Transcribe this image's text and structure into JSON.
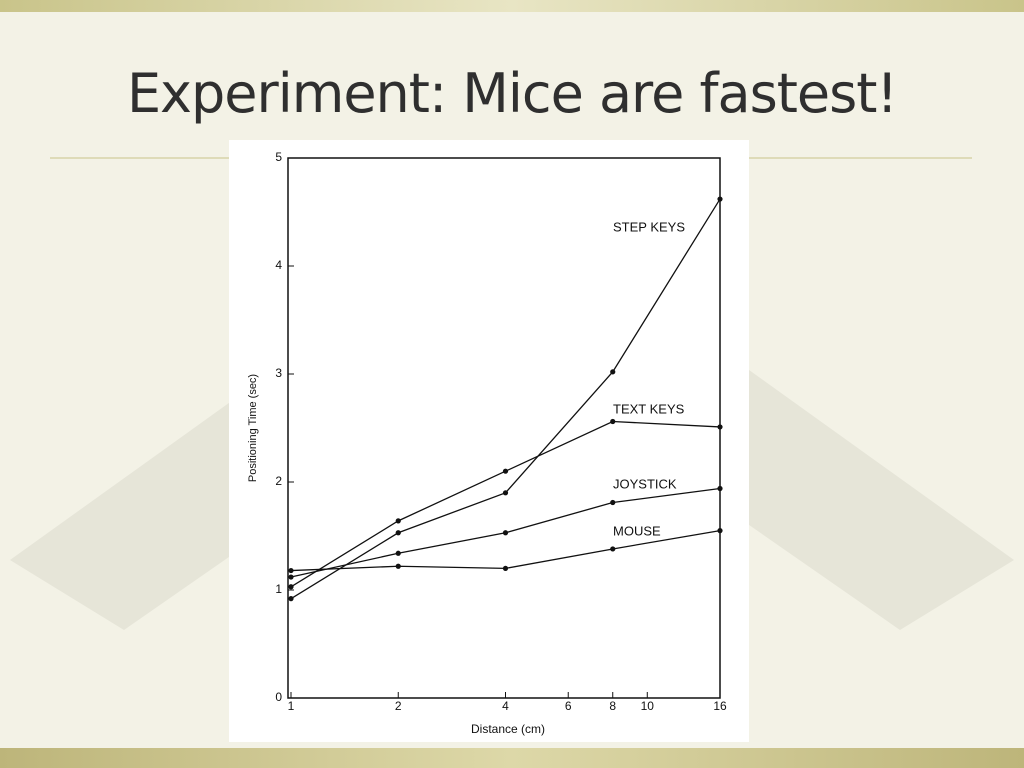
{
  "title": "Experiment: Mice are fastest!",
  "chart_data": {
    "type": "line",
    "x_label": "Distance (cm)",
    "y_label": "Positioning Time (sec)",
    "x": [
      1,
      2,
      4,
      8,
      16
    ],
    "xscale": "log",
    "xlim": [
      1,
      16
    ],
    "xticks": [
      1,
      2,
      4,
      6,
      8,
      10,
      16
    ],
    "ylim": [
      0,
      5
    ],
    "yticks": [
      0,
      1,
      2,
      3,
      4,
      5
    ],
    "grid": false,
    "series": [
      {
        "name": "STEP KEYS",
        "color": "#111111",
        "values": [
          0.92,
          1.53,
          1.9,
          3.02,
          4.62
        ]
      },
      {
        "name": "TEXT KEYS",
        "color": "#111111",
        "values": [
          1.03,
          1.64,
          2.1,
          2.56,
          2.51
        ]
      },
      {
        "name": "JOYSTICK",
        "color": "#111111",
        "values": [
          1.12,
          1.34,
          1.53,
          1.81,
          1.94
        ]
      },
      {
        "name": "MOUSE",
        "color": "#111111",
        "values": [
          1.18,
          1.22,
          1.2,
          1.38,
          1.55
        ]
      }
    ]
  }
}
